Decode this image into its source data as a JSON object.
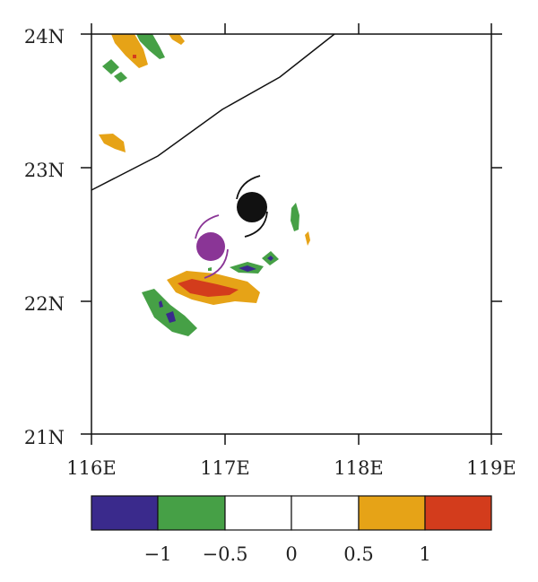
{
  "map": {
    "lat_labels": [
      {
        "lat": 24,
        "label": "24N"
      },
      {
        "lat": 23,
        "label": "23N"
      },
      {
        "lat": 22,
        "label": "22N"
      },
      {
        "lat": 21,
        "label": "21N"
      }
    ],
    "lon_labels": [
      {
        "lon": 116,
        "label": "116E"
      },
      {
        "lon": 117,
        "label": "117E"
      },
      {
        "lon": 118,
        "label": "118E"
      },
      {
        "lon": 119,
        "label": "119E"
      }
    ],
    "extent": {
      "lon": [
        116,
        119
      ],
      "lat": [
        21,
        24
      ]
    }
  },
  "colorbar": {
    "colors": [
      "#3a2a8c",
      "#46a046",
      "#ffffff",
      "#ffffff",
      "#e6a317",
      "#d33c1c"
    ],
    "labels": [
      "−1",
      "−0.5",
      "0",
      "0.5",
      "1"
    ]
  },
  "colors": {
    "coast": "#111111",
    "cyclone_a": "#111111",
    "cyclone_b": "#8a3596"
  },
  "markers": {
    "cyclone_a": {
      "lon": 117.2,
      "lat": 22.7,
      "icon": "typhoon-symbol-icon"
    },
    "cyclone_b": {
      "lon": 116.9,
      "lat": 22.4,
      "icon": "typhoon-symbol-icon"
    }
  }
}
